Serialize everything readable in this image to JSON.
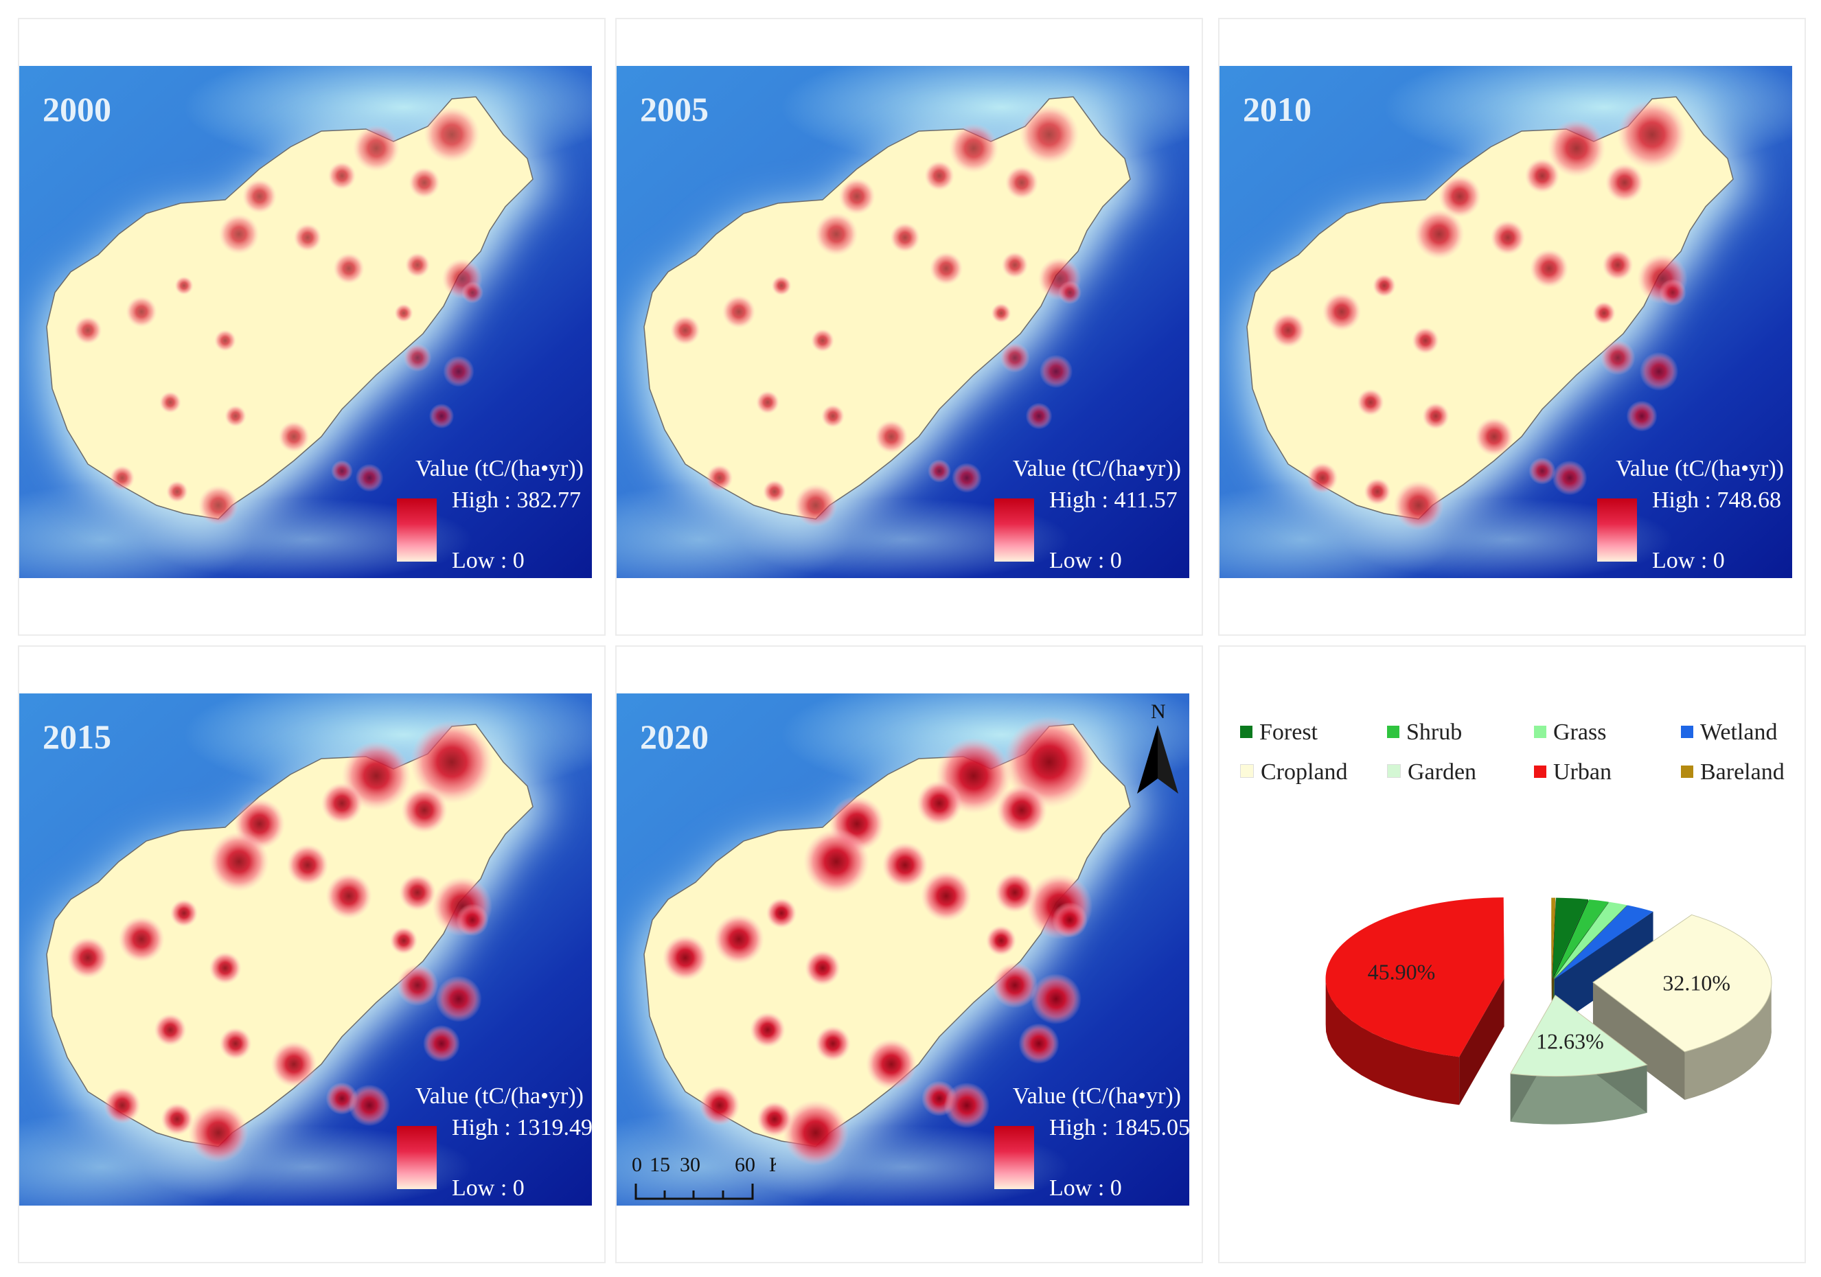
{
  "maps": [
    {
      "year": "2000",
      "value_title": "Value (tC/(ha•yr))",
      "high": "High : 382.77",
      "low": "Low : 0",
      "hotspot_scale": 0.35
    },
    {
      "year": "2005",
      "value_title": "Value (tC/(ha•yr))",
      "high": "High : 411.57",
      "low": "Low : 0",
      "hotspot_scale": 0.42
    },
    {
      "year": "2010",
      "value_title": "Value (tC/(ha•yr))",
      "high": "High : 748.68",
      "low": "Low : 0",
      "hotspot_scale": 0.6
    },
    {
      "year": "2015",
      "value_title": "Value (tC/(ha•yr))",
      "high": "High : 1319.49",
      "low": "Low : 0",
      "hotspot_scale": 0.85
    },
    {
      "year": "2020",
      "value_title": "Value (tC/(ha•yr))",
      "high": "High : 1845.05",
      "low": "Low : 0",
      "hotspot_scale": 1.0
    }
  ],
  "north_label": "N",
  "scale_bar": {
    "labels": [
      "0",
      "15",
      "30",
      "60"
    ],
    "unit": "Km"
  },
  "legend": [
    {
      "name": "Forest",
      "color": "#0b7a1e"
    },
    {
      "name": "Shrub",
      "color": "#2fc43f"
    },
    {
      "name": "Grass",
      "color": "#8ff59a"
    },
    {
      "name": "Wetland",
      "color": "#1e66e6"
    },
    {
      "name": "Cropland",
      "color": "#fdfbd9"
    },
    {
      "name": "Garden",
      "color": "#d4f7d4"
    },
    {
      "name": "Urban",
      "color": "#f01414"
    },
    {
      "name": "Bareland",
      "color": "#b48a10"
    }
  ],
  "chart_data": {
    "type": "pie",
    "slices": [
      {
        "name": "Urban",
        "value": 45.9,
        "label": "45.90%",
        "color": "#f01414"
      },
      {
        "name": "Garden",
        "value": 12.63,
        "label": "12.63%",
        "color": "#d4f7d4"
      },
      {
        "name": "Cropland",
        "value": 32.1,
        "label": "32.10%",
        "color": "#fdfbd9"
      },
      {
        "name": "Wetland",
        "value": 2.6,
        "label": "",
        "color": "#1e66e6"
      },
      {
        "name": "Grass",
        "value": 1.7,
        "label": "",
        "color": "#8ff59a"
      },
      {
        "name": "Shrub",
        "value": 1.8,
        "label": "",
        "color": "#2fc43f"
      },
      {
        "name": "Forest",
        "value": 2.9,
        "label": "",
        "color": "#0b7a1e"
      },
      {
        "name": "Bareland",
        "value": 0.37,
        "label": "",
        "color": "#b48a10"
      }
    ]
  }
}
